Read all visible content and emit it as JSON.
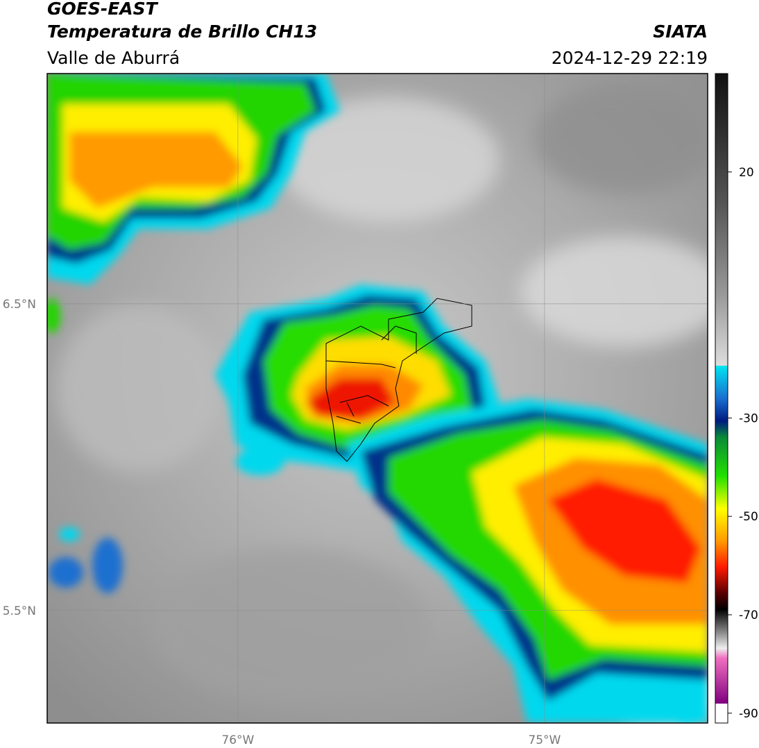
{
  "header": {
    "title": "GOES-EAST",
    "subtitle": "Temperatura de Brillo CH13",
    "region": "Valle de Aburrá",
    "source": "SIATA",
    "datetime": "2024-12-29 22:19"
  },
  "map": {
    "lonlim": [
      -76.622,
      -74.468
    ],
    "latlim": [
      5.133,
      7.251
    ],
    "grid": true,
    "lon_ticks": [
      {
        "value": -76,
        "label": "76°W"
      },
      {
        "value": -75,
        "label": "75°W"
      }
    ],
    "lat_ticks": [
      {
        "value": 6.5,
        "label": "6.5°N"
      },
      {
        "value": 5.5,
        "label": "5.5°N"
      }
    ]
  },
  "colorbar": {
    "lim": [
      -92,
      40
    ],
    "ticks": [
      20,
      -30,
      -50,
      -70,
      -90
    ]
  }
}
